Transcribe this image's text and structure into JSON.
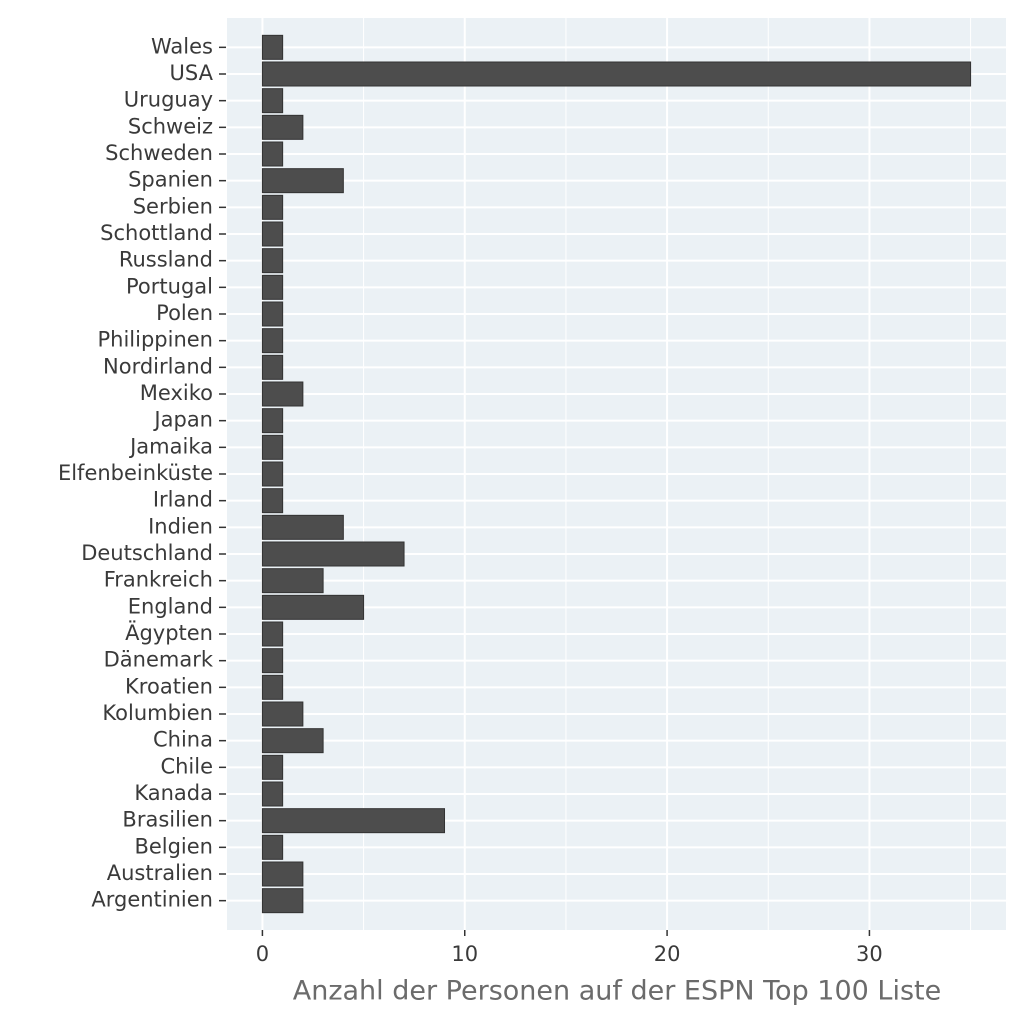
{
  "chart_data": {
    "type": "bar",
    "orientation": "horizontal",
    "x_label": "Anzahl der Personen auf der ESPN Top 100 Liste",
    "categories": [
      "Wales",
      "USA",
      "Uruguay",
      "Schweiz",
      "Schweden",
      "Spanien",
      "Serbien",
      "Schottland",
      "Russland",
      "Portugal",
      "Polen",
      "Philippinen",
      "Nordirland",
      "Mexiko",
      "Japan",
      "Jamaika",
      "Elfenbeinküste",
      "Irland",
      "Indien",
      "Deutschland",
      "Frankreich",
      "England",
      "Ägypten",
      "Dänemark",
      "Kroatien",
      "Kolumbien",
      "China",
      "Chile",
      "Kanada",
      "Brasilien",
      "Belgien",
      "Australien",
      "Argentinien"
    ],
    "values": [
      1,
      35,
      1,
      2,
      1,
      4,
      1,
      1,
      1,
      1,
      1,
      1,
      1,
      2,
      1,
      1,
      1,
      1,
      4,
      7,
      3,
      5,
      1,
      1,
      1,
      2,
      3,
      1,
      1,
      9,
      1,
      2,
      2
    ],
    "color": "#4d4d4d",
    "xlim": [
      -1.75,
      36.75
    ],
    "xticks": [
      0,
      10,
      20,
      30
    ],
    "x_minor_ticks": [
      5,
      15,
      25,
      35
    ],
    "grid": true
  }
}
